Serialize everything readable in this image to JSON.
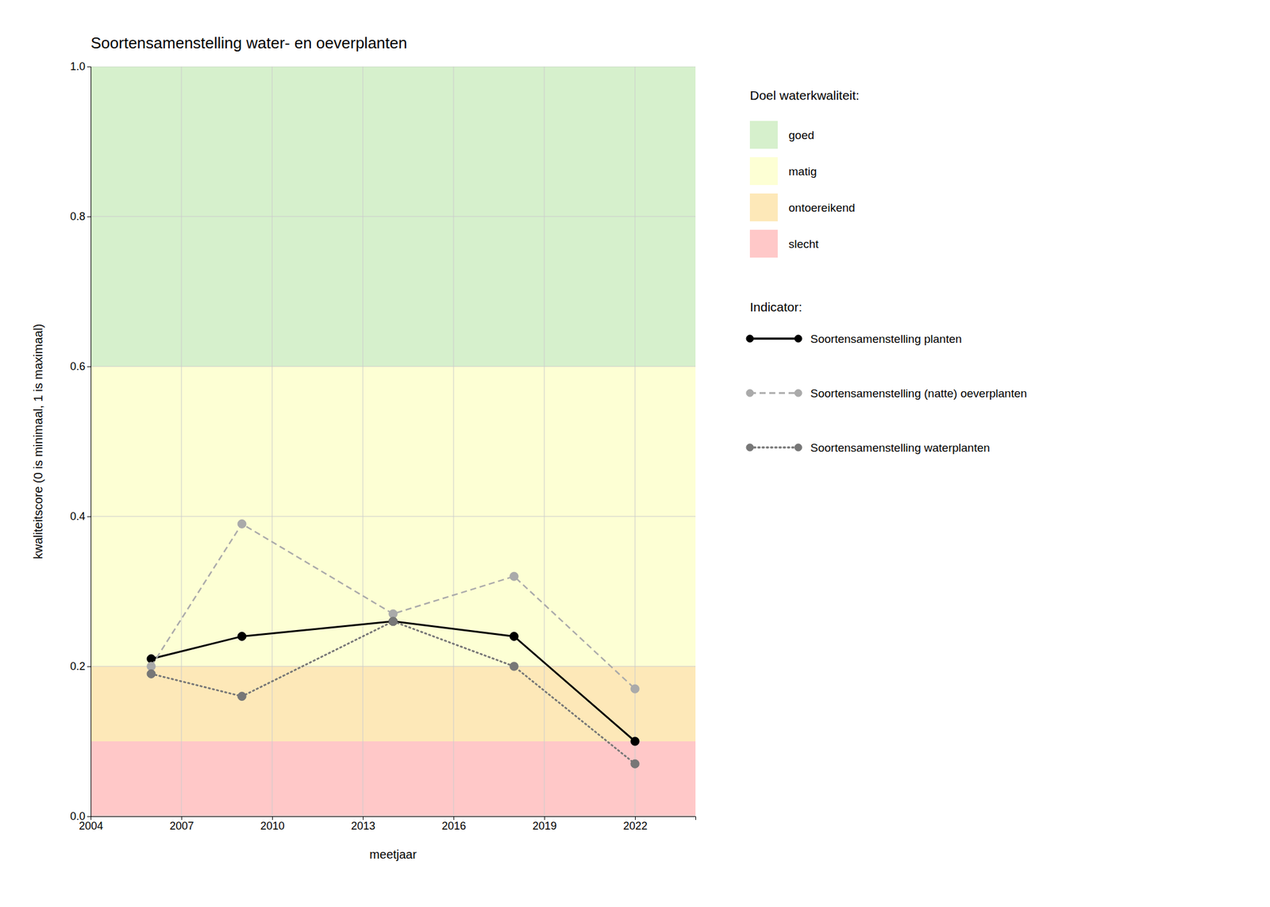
{
  "chart_data": {
    "type": "line",
    "title": "Soortensamenstelling water- en oeverplanten",
    "x_label": "meetjaar",
    "y_label": "kwaliteitscore (0 is minimaal, 1 is maximaal)",
    "x": [
      2006,
      2009,
      2014,
      2018,
      2022
    ],
    "series": [
      {
        "name": "Soortensamenstelling planten",
        "color": "#000000",
        "line_style": "solid",
        "marker": "circle",
        "values": [
          0.21,
          0.24,
          0.26,
          0.24,
          0.1
        ]
      },
      {
        "name": "Soortensamenstelling (natte) oeverplanten",
        "color": "#aaaaaa",
        "line_style": "dashed",
        "marker": "circle",
        "values": [
          0.2,
          0.39,
          0.27,
          0.32,
          0.17
        ]
      },
      {
        "name": "Soortensamenstelling waterplanten",
        "color": "#777777",
        "line_style": "dotted",
        "marker": "circle",
        "values": [
          0.19,
          0.16,
          0.26,
          0.2,
          0.07
        ]
      }
    ],
    "bands": [
      {
        "from": 0.6,
        "to": 1.0,
        "color": "#d6f0cc",
        "label": "goed"
      },
      {
        "from": 0.2,
        "to": 0.6,
        "color": "#fdffd4",
        "label": "matig"
      },
      {
        "from": 0.1,
        "to": 0.2,
        "color": "#fde8b8",
        "label": "ontoereikend"
      },
      {
        "from": 0.0,
        "to": 0.1,
        "color": "#ffc8c8",
        "label": "slecht"
      }
    ],
    "bands_legend_title": "Doel waterkwaliteit:",
    "legend_title": "Indicator:",
    "xlim": [
      2004,
      2024
    ],
    "ylim": [
      0.0,
      1.0
    ],
    "xticks": [
      2004,
      2007,
      2010,
      2013,
      2016,
      2019,
      2022
    ],
    "yticks": [
      {
        "value": 0.0,
        "label": "0.0"
      },
      0.2,
      0.4,
      0.6,
      0.8,
      {
        "value": 1.0,
        "label": "1.0"
      }
    ],
    "grid": true,
    "legend": "right"
  }
}
